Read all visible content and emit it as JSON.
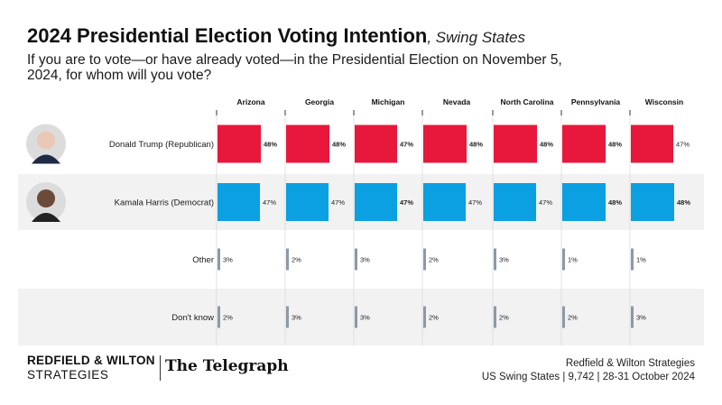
{
  "header": {
    "title": "2024 Presidential Election Voting Intention",
    "subtitle": ", Swing States",
    "question": "If you are to vote—or have already voted—in the Presidential Election on November 5, 2024, for whom will you vote?"
  },
  "footer": {
    "brand_line1": "REDFIELD & WILTON",
    "brand_line2": "STRATEGIES",
    "telegraph": "The Telegraph",
    "source_line1": "Redfield & Wilton Strategies",
    "source_line2": "US Swing States | 9,742 | 28-31 October 2024"
  },
  "colors": {
    "trump": "#e8173c",
    "harris": "#0aa0e2",
    "other": "#8c99a6",
    "stripe": "#f2f2f2",
    "separator": "#333333"
  },
  "chart_data": {
    "type": "bar",
    "categories": [
      "Arizona",
      "Georgia",
      "Michigan",
      "Nevada",
      "North Carolina",
      "Pennsylvania",
      "Wisconsin"
    ],
    "series": [
      {
        "name": "Donald Trump (Republican)",
        "values": [
          48,
          48,
          47,
          48,
          48,
          48,
          47
        ],
        "bold": [
          true,
          true,
          true,
          true,
          true,
          true,
          false
        ],
        "avatar": "trump-avatar"
      },
      {
        "name": "Kamala Harris (Democrat)",
        "values": [
          47,
          47,
          47,
          47,
          47,
          48,
          48
        ],
        "bold": [
          false,
          false,
          true,
          false,
          false,
          true,
          true
        ],
        "avatar": "harris-avatar"
      },
      {
        "name": "Other",
        "values": [
          3,
          2,
          3,
          2,
          3,
          1,
          1
        ],
        "bold": [
          false,
          false,
          false,
          false,
          false,
          false,
          false
        ]
      },
      {
        "name": "Don't know",
        "values": [
          2,
          3,
          3,
          2,
          2,
          2,
          3
        ],
        "bold": [
          false,
          false,
          false,
          false,
          false,
          false,
          false
        ]
      }
    ],
    "value_suffix": "%",
    "xlim": [
      0,
      48
    ]
  }
}
